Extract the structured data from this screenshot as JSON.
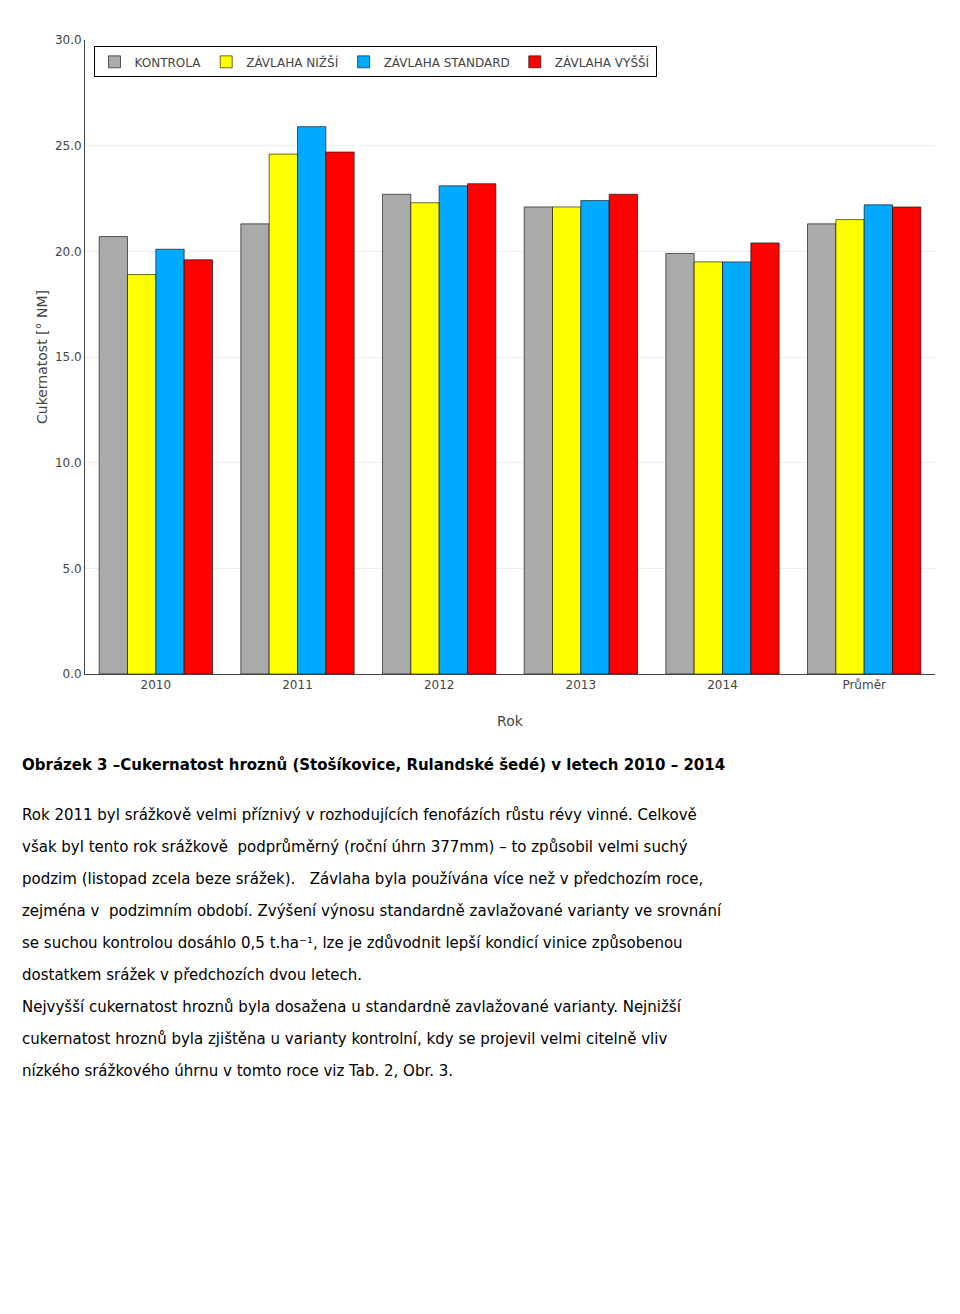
{
  "chart_data": {
    "type": "bar",
    "categories": [
      "2010",
      "2011",
      "2012",
      "2013",
      "2014",
      "Průměr"
    ],
    "series": [
      {
        "name": "KONTROLA",
        "color": "#AAAAAA",
        "values": [
          20.7,
          21.3,
          22.7,
          22.1,
          19.9,
          21.3
        ]
      },
      {
        "name": "ZÁVLAHA NIŽŠÍ",
        "color": "#FFFF00",
        "values": [
          18.9,
          24.6,
          22.3,
          22.1,
          19.5,
          21.5
        ]
      },
      {
        "name": "ZÁVLAHA STANDARD",
        "color": "#00AAFF",
        "values": [
          20.1,
          25.9,
          23.1,
          22.4,
          19.5,
          22.2
        ]
      },
      {
        "name": "ZÁVLAHA VYŠŠÍ",
        "color": "#FF0000",
        "values": [
          19.6,
          24.7,
          23.2,
          22.7,
          20.4,
          22.1
        ]
      }
    ],
    "x_label": "Rok",
    "y_label": "Cukernatost [° NM]",
    "ylim": [
      0.0,
      30.0
    ],
    "yticks": [
      {
        "value": 0,
        "label": "0.0"
      },
      {
        "value": 5,
        "label": "5.0"
      },
      {
        "value": 10,
        "label": "10.0"
      },
      {
        "value": 15,
        "label": "15.0"
      },
      {
        "value": 20,
        "label": "20.0"
      },
      {
        "value": 25,
        "label": "25.0"
      },
      {
        "value": 30,
        "label": "30.0"
      }
    ],
    "grid": true,
    "legend": "upper left",
    "annotations": [
      "Obrázek 3 –Cukernatost hroznů (Stošíkovice, Rulandské šedé) v letech 2010 – 2014",
      "Rok 2011 byl srážkově velmi příznivý v rozhodujících fenofázích růstu révy vinné. Celkově",
      "však byl tento rok srážkově  podprůměrný (roční úhrn 377mm) – to způsobil velmi suchý",
      "podzim (listopad zcela beze srážek).   Závlaha byla používána více než v předchozím roce,",
      "zejména v  podzimním období. Zvýšení výnosu standardně zavlažované varianty ve srovnání",
      "se suchou kontrolou dosáhlo 0,5 t.ha⁻¹, lze je zdůvodnit lepší kondicí vinice způsobenou",
      "dostatkem srážek v předchozích dvou letech.",
      "Nejvyšší cukernatost hroznů byla dosažena u standardně zavlažované varianty. Nejnižší",
      "cukernatost hroznů byla zjištěna u varianty kontrolní, kdy se projevil velmi citelně vliv",
      "nízkého srážkového úhrnu v tomto roce viz Tab. 2, Obr. 3."
    ]
  }
}
